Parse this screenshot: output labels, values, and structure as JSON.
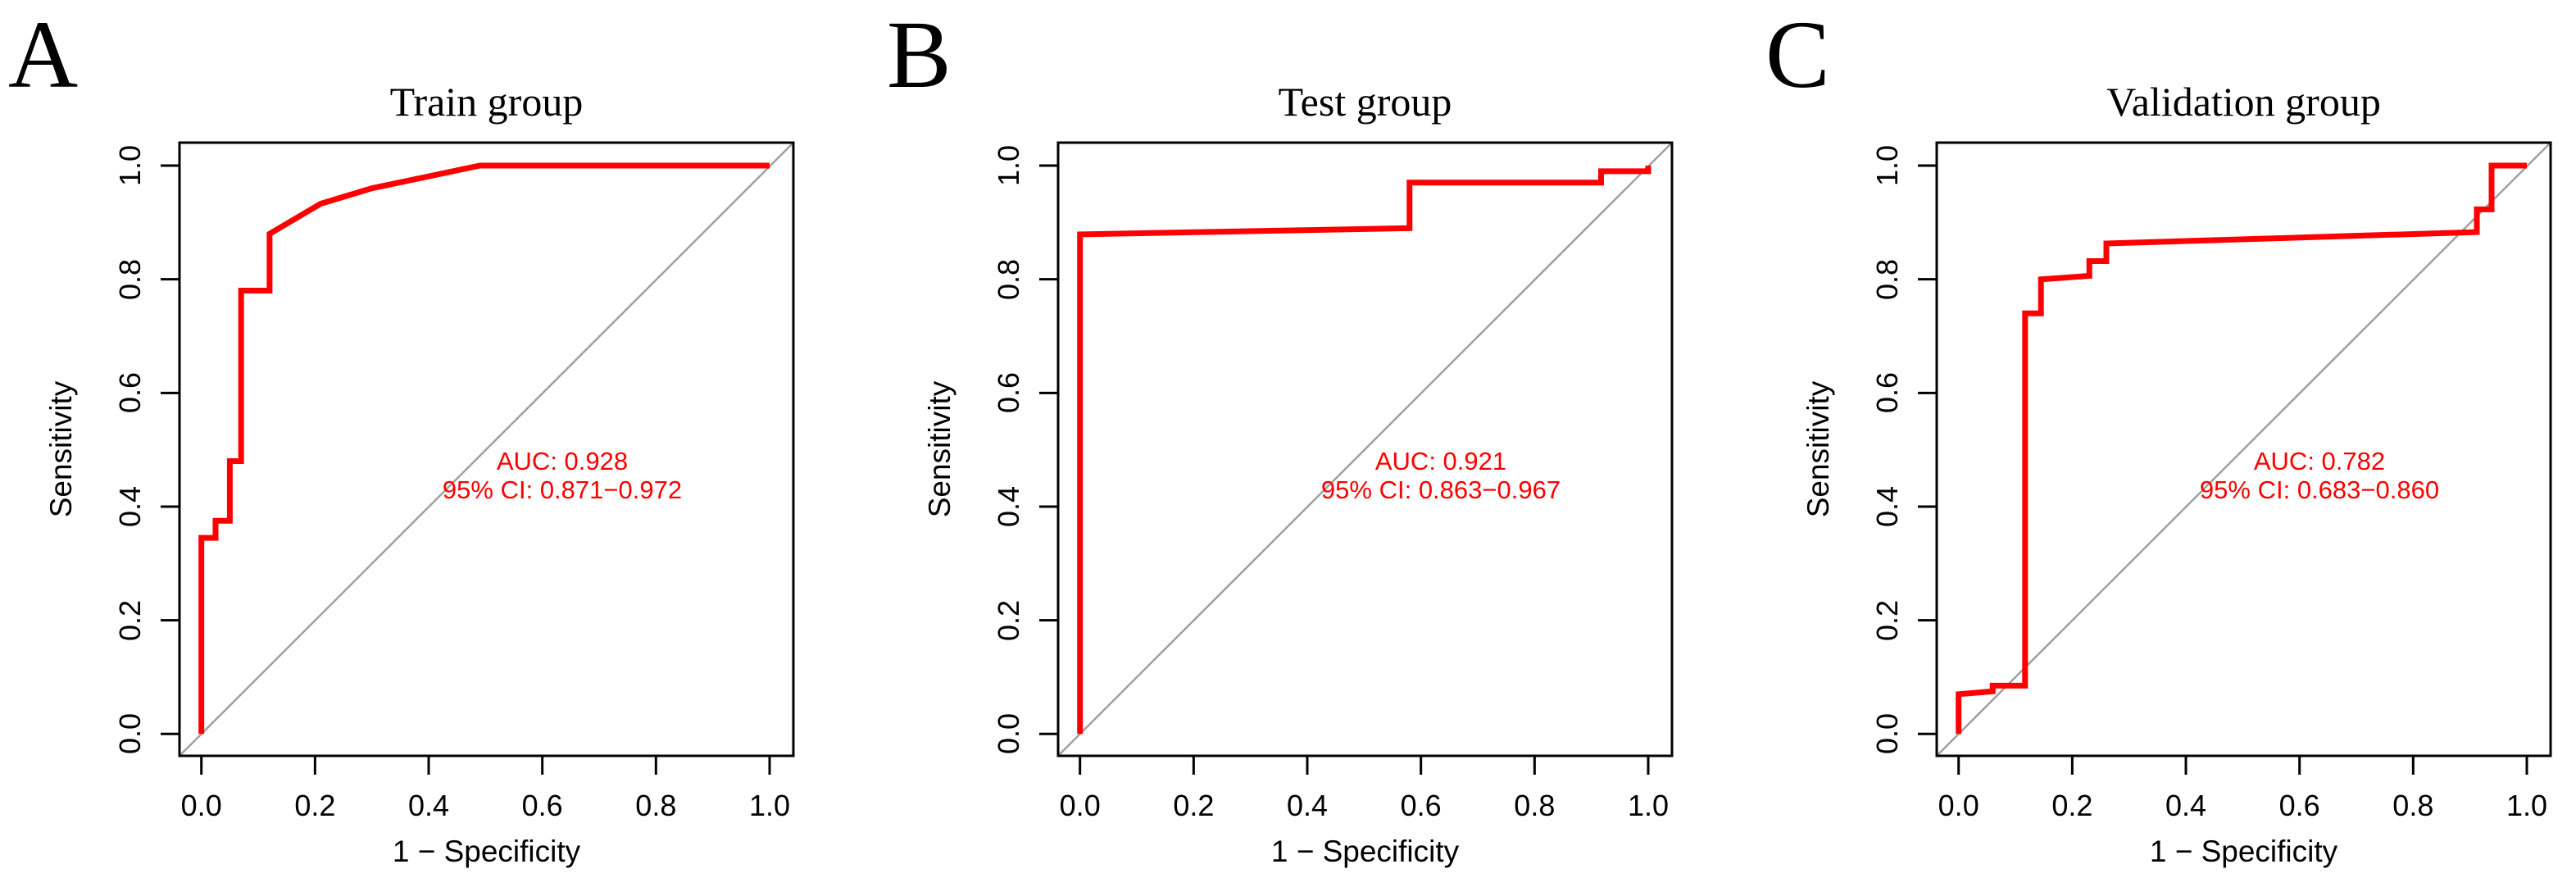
{
  "figure": {
    "background": "#ffffff",
    "description": "Three ROC curve panels"
  },
  "colors": {
    "roc_curve": "#ff0000",
    "diagonal_reference": "#a0a0a0",
    "axis": "#000000",
    "annotation_text": "#ff0000"
  },
  "chart_data": [
    {
      "type": "line",
      "panel_letter": "A",
      "title": "Train group",
      "xlabel": "1 − Specificity",
      "ylabel": "Sensitivity",
      "xlim": [
        0,
        1
      ],
      "ylim": [
        0,
        1
      ],
      "xticks": [
        "0.0",
        "0.2",
        "0.4",
        "0.6",
        "0.8",
        "1.0"
      ],
      "yticks": [
        "0.0",
        "0.2",
        "0.4",
        "0.6",
        "0.8",
        "1.0"
      ],
      "grid": false,
      "diagonal_reference": true,
      "auc_text": "AUC: 0.928",
      "ci_text": "95% CI: 0.871−0.972",
      "auc_value": 0.928,
      "ci_low": 0.871,
      "ci_high": 0.972,
      "roc_points": [
        [
          0,
          0
        ],
        [
          0,
          0.345
        ],
        [
          0.025,
          0.345
        ],
        [
          0.025,
          0.375
        ],
        [
          0.05,
          0.375
        ],
        [
          0.05,
          0.48
        ],
        [
          0.07,
          0.48
        ],
        [
          0.07,
          0.78
        ],
        [
          0.12,
          0.78
        ],
        [
          0.12,
          0.88
        ],
        [
          0.21,
          0.933
        ],
        [
          0.3,
          0.96
        ],
        [
          0.49,
          1.0
        ],
        [
          1.0,
          1.0
        ]
      ]
    },
    {
      "type": "line",
      "panel_letter": "B",
      "title": "Test group",
      "xlabel": "1 − Specificity",
      "ylabel": "Sensitivity",
      "xlim": [
        0,
        1
      ],
      "ylim": [
        0,
        1
      ],
      "xticks": [
        "0.0",
        "0.2",
        "0.4",
        "0.6",
        "0.8",
        "1.0"
      ],
      "yticks": [
        "0.0",
        "0.2",
        "0.4",
        "0.6",
        "0.8",
        "1.0"
      ],
      "grid": false,
      "diagonal_reference": true,
      "auc_text": "AUC: 0.921",
      "ci_text": "95% CI: 0.863−0.967",
      "auc_value": 0.921,
      "ci_low": 0.863,
      "ci_high": 0.967,
      "roc_points": [
        [
          0,
          0
        ],
        [
          0,
          0.879
        ],
        [
          0.58,
          0.89
        ],
        [
          0.58,
          0.97
        ],
        [
          0.917,
          0.97
        ],
        [
          0.917,
          0.99
        ],
        [
          1.0,
          0.99
        ],
        [
          1.0,
          1.0
        ]
      ]
    },
    {
      "type": "line",
      "panel_letter": "C",
      "title": "Validation group",
      "xlabel": "1 − Specificity",
      "ylabel": "Sensitivity",
      "xlim": [
        0,
        1
      ],
      "ylim": [
        0,
        1
      ],
      "xticks": [
        "0.0",
        "0.2",
        "0.4",
        "0.6",
        "0.8",
        "1.0"
      ],
      "yticks": [
        "0.0",
        "0.2",
        "0.4",
        "0.6",
        "0.8",
        "1.0"
      ],
      "grid": false,
      "diagonal_reference": true,
      "auc_text": "AUC: 0.782",
      "ci_text": "95% CI: 0.683−0.860",
      "auc_value": 0.782,
      "ci_low": 0.683,
      "ci_high": 0.86,
      "roc_points": [
        [
          0,
          0
        ],
        [
          0,
          0.07
        ],
        [
          0.06,
          0.075
        ],
        [
          0.06,
          0.085
        ],
        [
          0.117,
          0.085
        ],
        [
          0.117,
          0.74
        ],
        [
          0.145,
          0.74
        ],
        [
          0.145,
          0.8
        ],
        [
          0.23,
          0.806
        ],
        [
          0.23,
          0.832
        ],
        [
          0.26,
          0.832
        ],
        [
          0.26,
          0.863
        ],
        [
          0.912,
          0.883
        ],
        [
          0.912,
          0.923
        ],
        [
          0.938,
          0.923
        ],
        [
          0.938,
          1.0
        ],
        [
          1.0,
          1.0
        ]
      ]
    }
  ]
}
